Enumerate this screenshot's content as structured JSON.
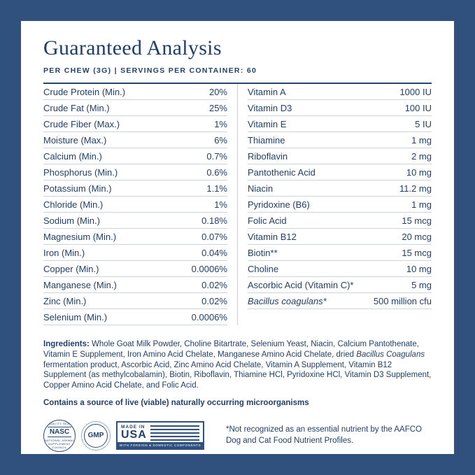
{
  "colors": {
    "frame": "#30517e",
    "text": "#21406b",
    "row_divider": "#ccd4e0"
  },
  "header": {
    "title": "Guaranteed Analysis",
    "subtitle": "PER CHEW (3G) | SERVINGS PER CONTAINER: 60"
  },
  "analysis": {
    "left": [
      {
        "label": "Crude Protein (Min.)",
        "value": "20%"
      },
      {
        "label": "Crude Fat (Min.)",
        "value": "25%"
      },
      {
        "label": "Crude Fiber (Max.)",
        "value": "1%"
      },
      {
        "label": "Moisture (Max.)",
        "value": "6%"
      },
      {
        "label": "Calcium (Min.)",
        "value": "0.7%"
      },
      {
        "label": "Phosphorus (Min.)",
        "value": "0.6%"
      },
      {
        "label": "Potassium (Min.)",
        "value": "1.1%"
      },
      {
        "label": "Chloride (Min.)",
        "value": "1%"
      },
      {
        "label": "Sodium (Min.)",
        "value": "0.18%"
      },
      {
        "label": "Magnesium (Min.)",
        "value": "0.07%"
      },
      {
        "label": "Iron (Min.)",
        "value": "0.04%"
      },
      {
        "label": "Copper (Min.)",
        "value": "0.0006%"
      },
      {
        "label": "Manganese (Min.)",
        "value": "0.02%"
      },
      {
        "label": "Zinc (Min.)",
        "value": "0.02%"
      },
      {
        "label": "Selenium (Min.)",
        "value": "0.0006%"
      }
    ],
    "right": [
      {
        "label": "Vitamin A",
        "value": "1000 IU"
      },
      {
        "label": "Vitamin D3",
        "value": "100 IU"
      },
      {
        "label": "Vitamin E",
        "value": "5 IU"
      },
      {
        "label": "Thiamine",
        "value": "1 mg"
      },
      {
        "label": "Riboflavin",
        "value": "2 mg"
      },
      {
        "label": "Pantothenic Acid",
        "value": "10 mg"
      },
      {
        "label": "Niacin",
        "value": "11.2 mg"
      },
      {
        "label": "Pyridoxine (B6)",
        "value": "1 mg"
      },
      {
        "label": "Folic Acid",
        "value": "15 mcg"
      },
      {
        "label": "Vitamin B12",
        "value": "20 mcg"
      },
      {
        "label": "Biotin**",
        "value": "15 mcg"
      },
      {
        "label": "Choline",
        "value": "10 mg"
      },
      {
        "label": "Ascorbic Acid (Vitamin C)*",
        "value": "5 mg"
      },
      {
        "label": "Bacillus coagulans*",
        "value": "500 million cfu"
      }
    ]
  },
  "ingredients": {
    "heading": "Ingredients:",
    "part1": " Whole Goat Milk Powder, Choline Bitartrate, Selenium Yeast, Niacin, Calcium Pantothenate, Vitamin E Supplement, Iron Amino Acid Chelate, Manganese Amino Acid Chelate, dried ",
    "italic": "Bacillus Coagulans",
    "part2": " fermentation product, Ascorbic Acid, Zinc Amino Acid Chelate, Vitamin A Supplement, Vitamin B12 Supplement (as methylcobalamin), Biotin, Riboflavin, Thiamine HCl, Pyridoxine HCl, Vitamin D3 Supplement, Copper Amino Acid Chelate, and Folic Acid."
  },
  "contains_note": "Contains a source of live (viable) naturally occurring microorganisms",
  "badges": {
    "nasc": {
      "top": "QUALITY SEAL",
      "center": "NASC",
      "bottom": "NATIONAL ANIMAL SUPPLEMENT COUNCIL"
    },
    "gmp": {
      "center": "GMP"
    },
    "usa": {
      "line1": "MADE IN",
      "line2": "USA",
      "strip": "WITH FOREIGN & DOMESTIC COMPONENTS"
    }
  },
  "footnote": "*Not recognized as an essential nutrient by the AAFCO Dog and Cat Food Nutrient Profiles."
}
